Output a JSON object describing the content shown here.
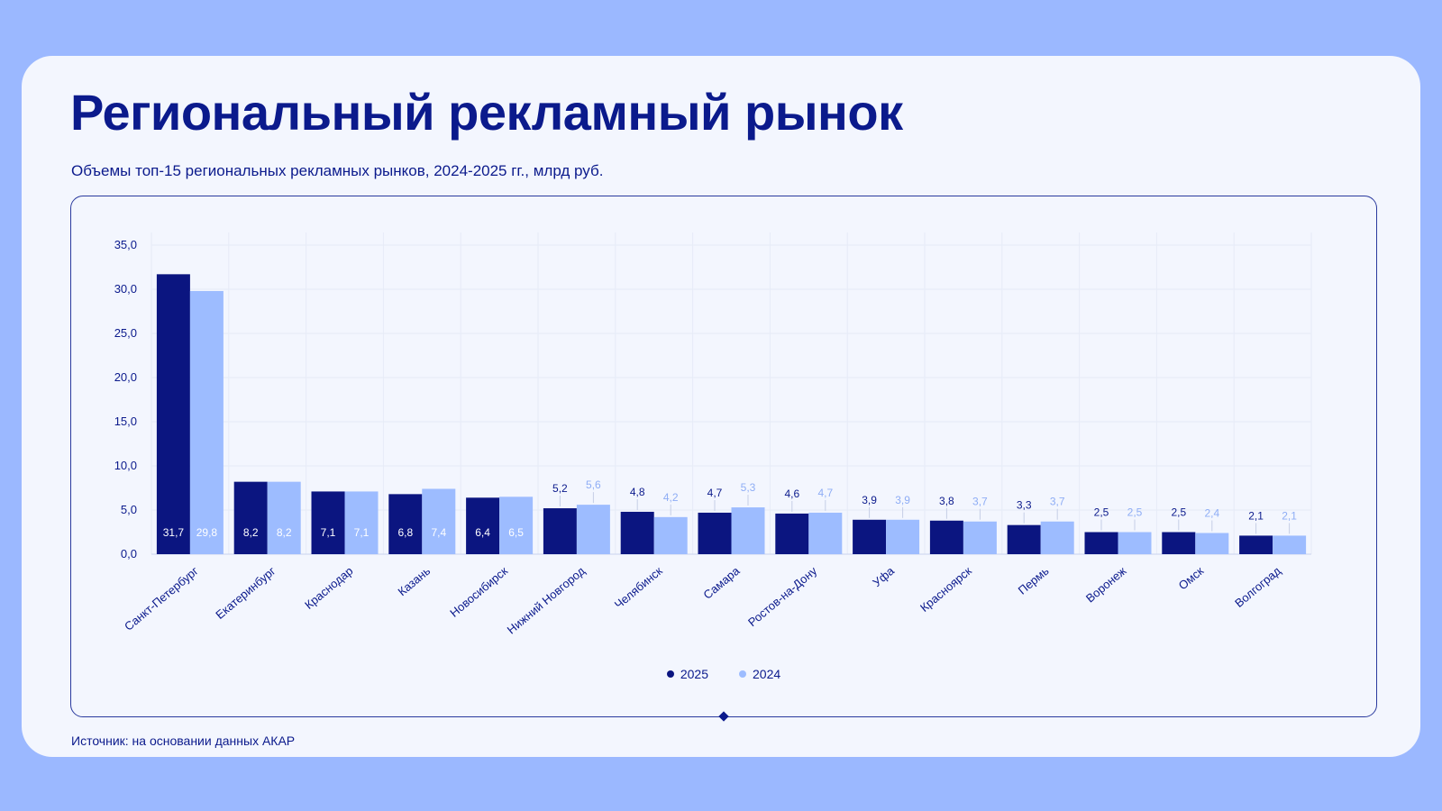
{
  "page": {
    "title": "Региональный рекламный рынок",
    "subtitle": "Объемы топ-15 региональных рекламных рынков, 2024-2025 гг., млрд руб.",
    "source": "Источник: на основании данных АКАР"
  },
  "colors": {
    "background": "#9BB8FF",
    "card": "#F3F6FE",
    "series_2025": "#0B1580",
    "series_2024": "#9DBCFF",
    "text_dark": "#0B1A8C"
  },
  "chart_data": {
    "type": "bar",
    "categories": [
      "Санкт-Петербург",
      "Екатеринбург",
      "Краснодар",
      "Казань",
      "Новосибирск",
      "Нижний Новгород",
      "Челябинск",
      "Самара",
      "Ростов-на-Дону",
      "Уфа",
      "Красноярск",
      "Пермь",
      "Воронеж",
      "Омск",
      "Волгоград"
    ],
    "series": [
      {
        "name": "2025",
        "values": [
          31.7,
          8.2,
          7.1,
          6.8,
          6.4,
          5.2,
          4.8,
          4.7,
          4.6,
          3.9,
          3.8,
          3.3,
          2.5,
          2.5,
          2.1
        ],
        "labels": [
          "31,7",
          "8,2",
          "7,1",
          "6,8",
          "6,4",
          "5,2",
          "4,8",
          "4,7",
          "4,6",
          "3,9",
          "3,8",
          "3,3",
          "2,5",
          "2,5",
          "2,1"
        ]
      },
      {
        "name": "2024",
        "values": [
          29.8,
          8.2,
          7.1,
          7.4,
          6.5,
          5.6,
          4.2,
          5.3,
          4.7,
          3.9,
          3.7,
          3.7,
          2.5,
          2.4,
          2.1
        ],
        "labels": [
          "29,8",
          "8,2",
          "7,1",
          "7,4",
          "6,5",
          "5,6",
          "4,2",
          "5,3",
          "4,7",
          "3,9",
          "3,7",
          "3,7",
          "2,5",
          "2,4",
          "2,1"
        ]
      }
    ],
    "yticks": [
      "0,0",
      "5,0",
      "10,0",
      "15,0",
      "20,0",
      "25,0",
      "30,0",
      "35,0"
    ],
    "ylim": [
      0,
      35
    ],
    "grid": true,
    "legend_position": "bottom-center"
  }
}
